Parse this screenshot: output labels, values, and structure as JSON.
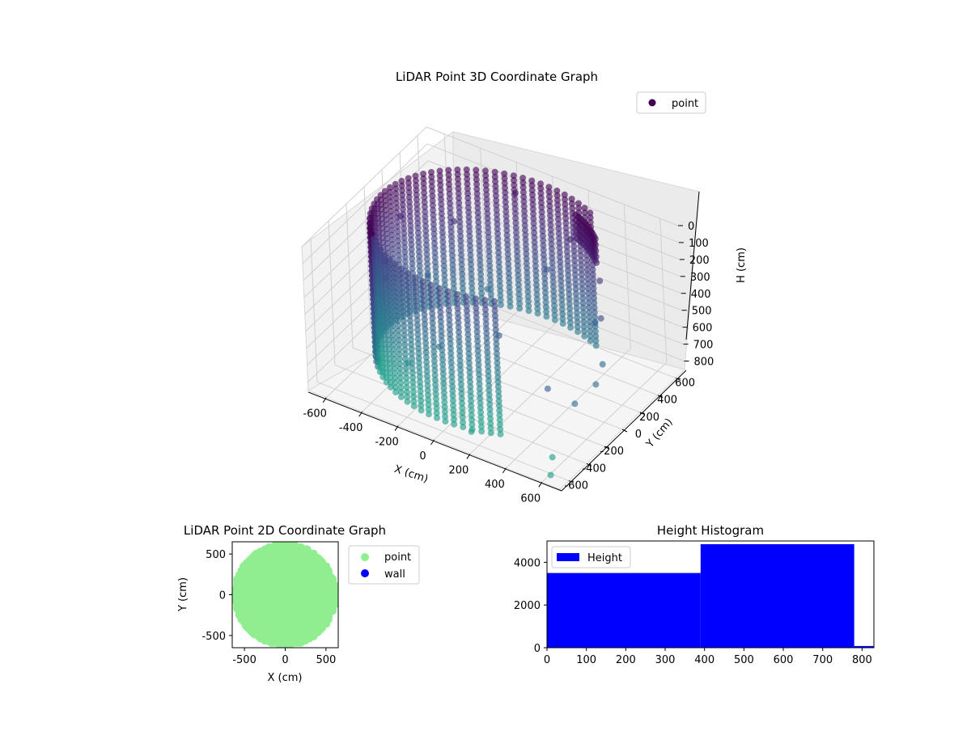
{
  "charts": {
    "scatter3d": {
      "title": "LiDAR Point 3D Coordinate Graph",
      "legend": "point",
      "xlabel": "X (cm)",
      "ylabel": "Y (cm)",
      "zlabel": "H (cm)"
    },
    "scatter2d": {
      "title": "LiDAR Point 2D Coordinate Graph",
      "legend": [
        "point",
        "wall"
      ],
      "xlabel": "X (cm)",
      "ylabel": "Y (cm)"
    },
    "hist": {
      "title": "Height Histogram",
      "legend": "Height"
    }
  },
  "chart_data": [
    {
      "type": "scatter",
      "subtype": "3d",
      "title": "LiDAR Point 3D Coordinate Graph",
      "xlabel": "X (cm)",
      "ylabel": "Y (cm)",
      "zlabel": "H (cm)",
      "xlim": [
        -700,
        700
      ],
      "ylim": [
        -700,
        700
      ],
      "zlim": [
        0,
        850
      ],
      "zaxis_inverted": true,
      "x_ticks": [
        -600,
        -400,
        -200,
        0,
        200,
        400,
        600
      ],
      "y_ticks": [
        -600,
        -400,
        -200,
        0,
        200,
        400,
        600
      ],
      "z_ticks": [
        0,
        100,
        200,
        300,
        400,
        500,
        600,
        700,
        800
      ],
      "legend": [
        "point"
      ],
      "legend_position": "top-right",
      "colormap": "viridis",
      "grid": true,
      "series": [
        {
          "name": "point",
          "color": "#440154",
          "shape": "partial cylindrical wall of points, radius approx 600 cm, height 0-800 cm, spanning the -x / +y side",
          "points": [
            [
              -600,
              0,
              400
            ],
            [
              -580,
              150,
              200
            ],
            [
              -520,
              300,
              600
            ],
            [
              -420,
              420,
              300
            ],
            [
              -300,
              520,
              700
            ],
            [
              -150,
              580,
              100
            ],
            [
              0,
              600,
              500
            ],
            [
              150,
              580,
              250
            ],
            [
              300,
              520,
              650
            ],
            [
              -560,
              -200,
              450
            ],
            [
              -480,
              -350,
              750
            ],
            [
              -350,
              -480,
              150
            ],
            [
              -200,
              -560,
              550
            ],
            [
              0,
              -600,
              350
            ],
            [
              150,
              -580,
              800
            ],
            [
              300,
              -520,
              200
            ],
            [
              400,
              400,
              300
            ],
            [
              450,
              300,
              450
            ],
            [
              500,
              200,
              650
            ],
            [
              520,
              80,
              700
            ],
            [
              480,
              -80,
              750
            ],
            [
              420,
              -250,
              600
            ],
            [
              560,
              -500,
              820
            ],
            [
              620,
              -640,
              830
            ]
          ]
        }
      ]
    },
    {
      "type": "scatter",
      "title": "LiDAR Point 2D Coordinate Graph",
      "xlabel": "X (cm)",
      "ylabel": "Y (cm)",
      "xlim": [
        -650,
        650
      ],
      "ylim": [
        -650,
        650
      ],
      "x_ticks": [
        -500,
        0,
        500
      ],
      "y_ticks": [
        -500,
        0,
        500
      ],
      "legend": [
        "point",
        "wall"
      ],
      "legend_position": "outside-right",
      "series": [
        {
          "name": "point",
          "color": "#90ee90",
          "shape": "filled disc of points, radius approx 620 cm, with scattered gaps on the +x side"
        },
        {
          "name": "wall",
          "color": "#0000ff",
          "points": []
        }
      ]
    },
    {
      "type": "bar",
      "subtype": "histogram",
      "title": "Height Histogram",
      "legend": [
        "Height"
      ],
      "legend_position": "top-left",
      "xlim": [
        0,
        830
      ],
      "ylim": [
        0,
        5000
      ],
      "x_ticks": [
        0,
        100,
        200,
        300,
        400,
        500,
        600,
        700,
        800
      ],
      "y_ticks": [
        0,
        2000,
        4000
      ],
      "color": "#0000ff",
      "bins": [
        {
          "start": 0,
          "end": 390,
          "count": 3500
        },
        {
          "start": 390,
          "end": 780,
          "count": 4850
        },
        {
          "start": 780,
          "end": 1170,
          "count": 80
        }
      ]
    }
  ]
}
